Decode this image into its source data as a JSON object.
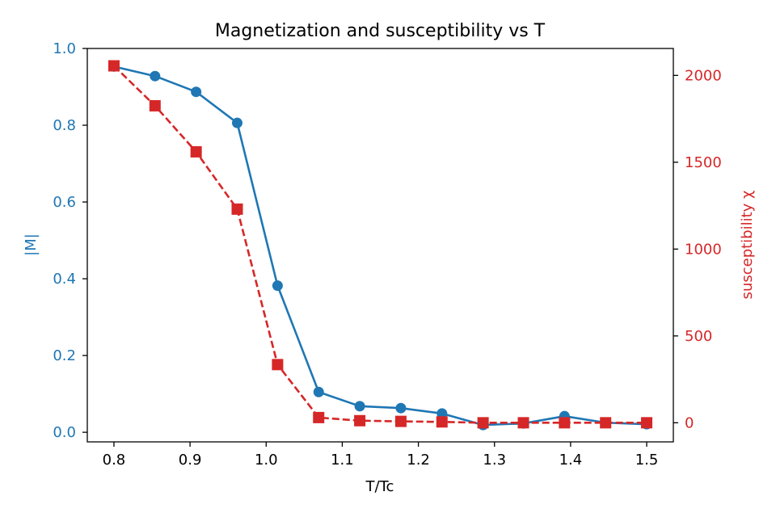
{
  "chart_data": {
    "type": "line",
    "title": "Magnetization and susceptibility vs T",
    "xlabel": "T/Tc",
    "ylabel_left": "|M|",
    "ylabel_right": "susceptibility χ",
    "xlim": [
      0.765,
      1.535
    ],
    "ylim_left": [
      -0.025,
      1.0
    ],
    "ylim_right": [
      -110,
      2155
    ],
    "x_ticks": [
      0.8,
      0.9,
      1.0,
      1.1,
      1.2,
      1.3,
      1.4,
      1.5
    ],
    "x_tick_labels": [
      "0.8",
      "0.9",
      "1.0",
      "1.1",
      "1.2",
      "1.3",
      "1.4",
      "1.5"
    ],
    "y_left_ticks": [
      0.0,
      0.2,
      0.4,
      0.6,
      0.8,
      1.0
    ],
    "y_left_tick_labels": [
      "0.0",
      "0.2",
      "0.4",
      "0.6",
      "0.8",
      "1.0"
    ],
    "y_right_ticks": [
      0,
      500,
      1000,
      1500,
      2000
    ],
    "y_right_tick_labels": [
      "0",
      "500",
      "1000",
      "1500",
      "2000"
    ],
    "x": [
      0.8,
      0.854,
      0.908,
      0.962,
      1.015,
      1.069,
      1.123,
      1.177,
      1.231,
      1.285,
      1.338,
      1.392,
      1.446,
      1.5
    ],
    "series": [
      {
        "name": "|M|",
        "axis": "left",
        "color": "#1f77b4",
        "marker": "circle",
        "linestyle": "solid",
        "values": [
          0.953,
          0.928,
          0.887,
          0.806,
          0.382,
          0.105,
          0.068,
          0.063,
          0.049,
          0.019,
          0.023,
          0.042,
          0.025,
          0.021
        ]
      },
      {
        "name": "susceptibility χ",
        "axis": "right",
        "color": "#d62728",
        "marker": "square",
        "linestyle": "dashed",
        "values": [
          2055,
          1825,
          1560,
          1230,
          335,
          30,
          12,
          8,
          5,
          0,
          0,
          0,
          0,
          0
        ]
      }
    ],
    "grid": false
  }
}
